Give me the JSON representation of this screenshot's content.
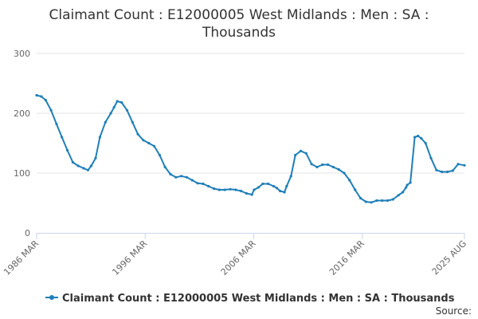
{
  "chart_data": {
    "type": "line",
    "title_lines": [
      "Claimant Count : E12000005 West Midlands : Men : SA :",
      "Thousands"
    ],
    "xlabel": "",
    "ylabel": "",
    "ylim": [
      0,
      300
    ],
    "y_ticks": [
      0,
      100,
      200,
      300
    ],
    "x_ticks": [
      {
        "label": "1986 MAR",
        "t": 1986.17
      },
      {
        "label": "1996 MAR",
        "t": 1996.17
      },
      {
        "label": "2006 MAR",
        "t": 2006.17
      },
      {
        "label": "2016 MAR",
        "t": 2016.17
      },
      {
        "label": "2025 AUG",
        "t": 2025.58
      }
    ],
    "grid": "horizontal",
    "legend_position": "bottom-center",
    "color": "#1f7fb8",
    "series": [
      {
        "name": "Claimant Count : E12000005 West Midlands : Men : SA : Thousands",
        "x": [
          1986.17,
          1986.6,
          1987.0,
          1987.5,
          1988.0,
          1988.5,
          1989.0,
          1989.5,
          1990.0,
          1990.5,
          1990.9,
          1991.2,
          1991.6,
          1992.0,
          1992.5,
          1993.0,
          1993.3,
          1993.6,
          1994.0,
          1994.5,
          1995.0,
          1995.5,
          1996.0,
          1996.5,
          1997.0,
          1997.5,
          1998.0,
          1998.5,
          1999.0,
          1999.5,
          2000.0,
          2000.5,
          2001.0,
          2001.5,
          2002.0,
          2002.5,
          2003.0,
          2003.5,
          2004.0,
          2004.5,
          2005.0,
          2005.5,
          2006.0,
          2006.2,
          2006.6,
          2007.0,
          2007.5,
          2008.0,
          2008.3,
          2008.6,
          2009.0,
          2009.2,
          2009.6,
          2010.0,
          2010.5,
          2011.0,
          2011.5,
          2012.0,
          2012.5,
          2013.0,
          2013.5,
          2014.0,
          2014.5,
          2015.0,
          2015.5,
          2016.0,
          2016.5,
          2017.0,
          2017.5,
          2018.0,
          2018.5,
          2019.0,
          2019.5,
          2019.9,
          2020.2,
          2020.3,
          2020.6,
          2021.0,
          2021.3,
          2021.6,
          2022.0,
          2022.5,
          2023.0,
          2023.5,
          2024.0,
          2024.5,
          2025.0,
          2025.58
        ],
        "values": [
          230,
          228,
          222,
          205,
          182,
          160,
          138,
          118,
          112,
          108,
          105,
          112,
          125,
          160,
          185,
          200,
          210,
          220,
          218,
          205,
          185,
          165,
          155,
          150,
          145,
          130,
          110,
          98,
          93,
          95,
          93,
          88,
          83,
          82,
          78,
          74,
          72,
          72,
          73,
          72,
          70,
          66,
          64,
          72,
          76,
          82,
          82,
          78,
          75,
          70,
          68,
          78,
          95,
          130,
          137,
          133,
          115,
          110,
          114,
          114,
          110,
          106,
          100,
          88,
          72,
          58,
          52,
          51,
          54,
          54,
          54,
          56,
          63,
          68,
          76,
          80,
          84,
          160,
          162,
          158,
          150,
          125,
          105,
          102,
          102,
          104,
          115,
          113
        ]
      }
    ],
    "legend_label": "Claimant Count : E12000005 West Midlands : Men : SA : Thousands",
    "credits": "Source:"
  }
}
